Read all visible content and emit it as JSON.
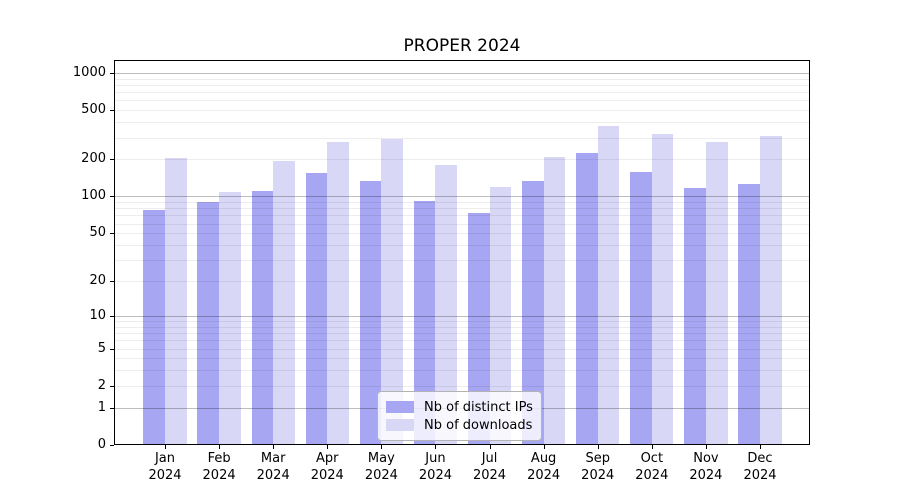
{
  "chart_data": {
    "type": "bar",
    "title": "PROPER 2024",
    "categories": [
      "Jan",
      "Feb",
      "Mar",
      "Apr",
      "May",
      "Jun",
      "Jul",
      "Aug",
      "Sep",
      "Oct",
      "Nov",
      "Dec"
    ],
    "year": "2024",
    "series": [
      {
        "name": "Nb of distinct IPs",
        "color": "#a7a6f2",
        "values": [
          77,
          90,
          111,
          154,
          134,
          91,
          73,
          134,
          224,
          159,
          118,
          126
        ]
      },
      {
        "name": "Nb of downloads",
        "color": "#d8d8f6",
        "values": [
          206,
          108,
          194,
          278,
          293,
          181,
          120,
          209,
          373,
          323,
          278,
          310
        ]
      }
    ],
    "xlabel": "",
    "ylabel": "",
    "yscale": "log1p",
    "ylim": [
      0,
      1000
    ],
    "yticks": [
      0,
      1,
      2,
      5,
      10,
      20,
      50,
      100,
      200,
      500,
      1000
    ],
    "grid": {
      "on": true,
      "major": [
        1,
        10,
        100,
        1000
      ],
      "minor": [
        2,
        3,
        4,
        5,
        6,
        7,
        8,
        9,
        20,
        30,
        40,
        50,
        60,
        70,
        80,
        90,
        200,
        300,
        400,
        500,
        600,
        700,
        800,
        900
      ]
    },
    "legend_position": "lower center"
  }
}
